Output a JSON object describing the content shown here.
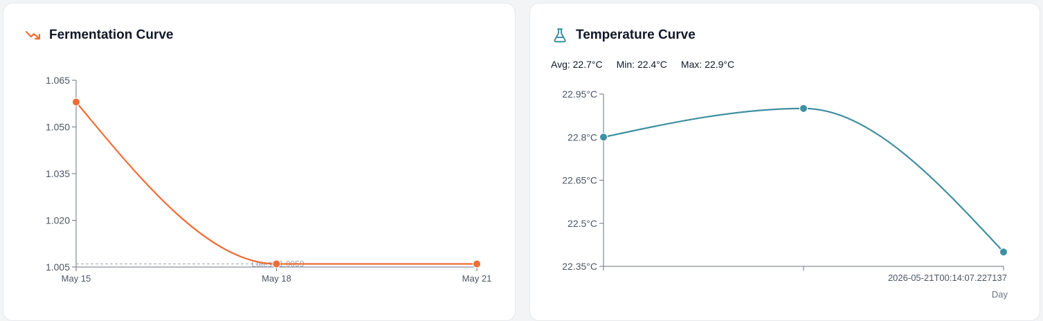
{
  "colors": {
    "fermentation": "#ef6c33",
    "temperature": "#3f8fa0",
    "axis": "#6b7280",
    "reference": "#9ca3af"
  },
  "fermentation_card": {
    "title": "Fermentation Curve",
    "icon": "trending-down-icon"
  },
  "temperature_card": {
    "title": "Temperature Curve",
    "icon": "flask-icon",
    "stats": {
      "avg": "Avg: 22.7°C",
      "min": "Min: 22.4°C",
      "max": "Max: 22.9°C"
    }
  },
  "chart_data": [
    {
      "type": "line",
      "title": "Fermentation Curve",
      "x": [
        "May 15",
        "May 18",
        "May 21"
      ],
      "series": [
        {
          "values": [
            1.058,
            1.006,
            1.006
          ]
        }
      ],
      "ylim": [
        1.005,
        1.065
      ],
      "yticks": [
        "1.065",
        "1.050",
        "1.035",
        "1.020",
        "1.005"
      ],
      "ytick_values": [
        1.065,
        1.05,
        1.035,
        1.02,
        1.005
      ],
      "reference_line": {
        "value": 1.006,
        "label": "Latest: 1.0059"
      },
      "grid": false
    },
    {
      "type": "line",
      "title": "Temperature Curve",
      "x": [
        "",
        "",
        "2026-05-21T00:14:07.227137"
      ],
      "xlabel": "Day",
      "series": [
        {
          "values": [
            22.8,
            22.9,
            22.4
          ]
        }
      ],
      "ylim": [
        22.35,
        22.95
      ],
      "yticks": [
        "22.95°C",
        "22.8°C",
        "22.65°C",
        "22.5°C",
        "22.35°C"
      ],
      "ytick_values": [
        22.95,
        22.8,
        22.65,
        22.5,
        22.35
      ],
      "grid": false
    }
  ]
}
